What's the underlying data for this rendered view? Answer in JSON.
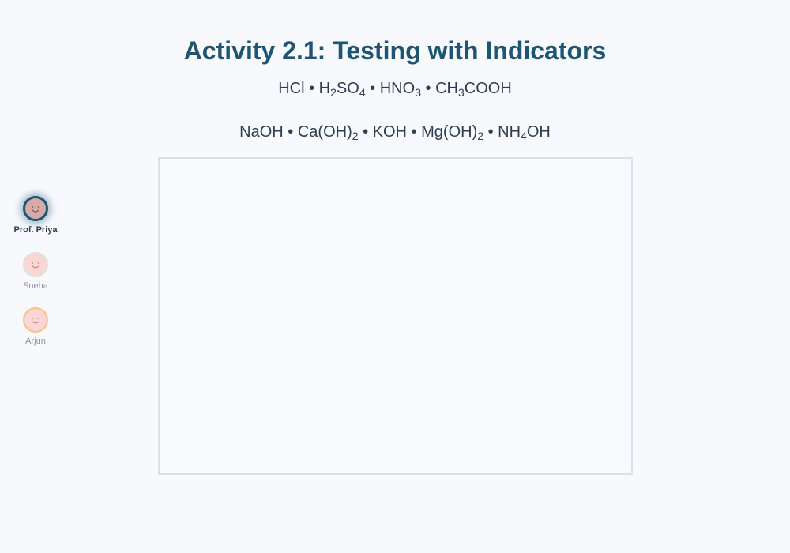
{
  "activity": {
    "title": "Activity 2.1: Testing with Indicators"
  },
  "acids": [
    {
      "parts": [
        "HCl"
      ]
    },
    {
      "parts": [
        "H",
        "2",
        "SO",
        "4"
      ]
    },
    {
      "parts": [
        "HNO",
        "3"
      ]
    },
    {
      "parts": [
        "CH",
        "3",
        "COOH"
      ]
    }
  ],
  "bases": [
    {
      "parts": [
        "NaOH"
      ]
    },
    {
      "parts": [
        "Ca(OH)",
        "2"
      ]
    },
    {
      "parts": [
        "KOH"
      ]
    },
    {
      "parts": [
        "Mg(OH)",
        "2"
      ]
    },
    {
      "parts": [
        "NH",
        "4",
        "OH"
      ]
    }
  ],
  "separator": " • ",
  "participants": [
    {
      "name": "Prof. Priya",
      "active": true,
      "icon": "smiley-face-icon"
    },
    {
      "name": "Sneha",
      "active": false,
      "icon": "smiley-face-icon"
    },
    {
      "name": "Arjun",
      "active": false,
      "icon": "smiley-face-icon"
    }
  ],
  "colors": {
    "accent": "#1e5573",
    "text": "#2c3e50",
    "muted": "#8a95a3",
    "avatar_bg": "#fcd6d3",
    "board_border": "#dde1e7",
    "background": "#f7f9fc"
  }
}
